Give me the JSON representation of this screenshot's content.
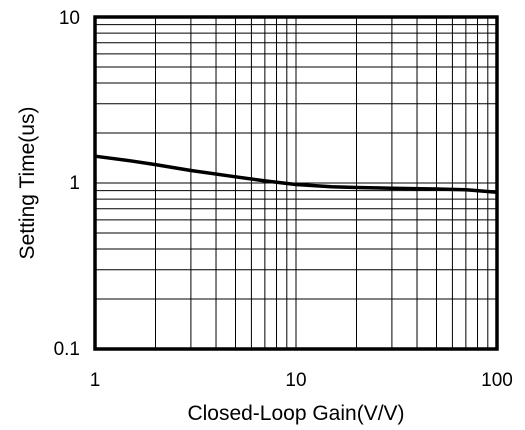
{
  "chart_data": {
    "type": "line",
    "title": "",
    "xlabel": "Closed-Loop Gain(V/V)",
    "ylabel": "Setting Time(us)",
    "x_scale": "log",
    "y_scale": "log",
    "xlim": [
      1,
      100
    ],
    "ylim": [
      0.1,
      10
    ],
    "grid": true,
    "x_ticks": [
      "1",
      "10",
      "100"
    ],
    "y_ticks": [
      "0.1",
      "1",
      "10"
    ],
    "x_tick_values": [
      1,
      10,
      100
    ],
    "y_tick_values": [
      0.1,
      1,
      10
    ],
    "series": [
      {
        "x": [
          1,
          1.5,
          2,
          3,
          5,
          7,
          10,
          15,
          20,
          30,
          50,
          70,
          100
        ],
        "y": [
          1.45,
          1.36,
          1.29,
          1.19,
          1.09,
          1.03,
          0.98,
          0.95,
          0.94,
          0.93,
          0.92,
          0.91,
          0.88
        ]
      }
    ]
  }
}
